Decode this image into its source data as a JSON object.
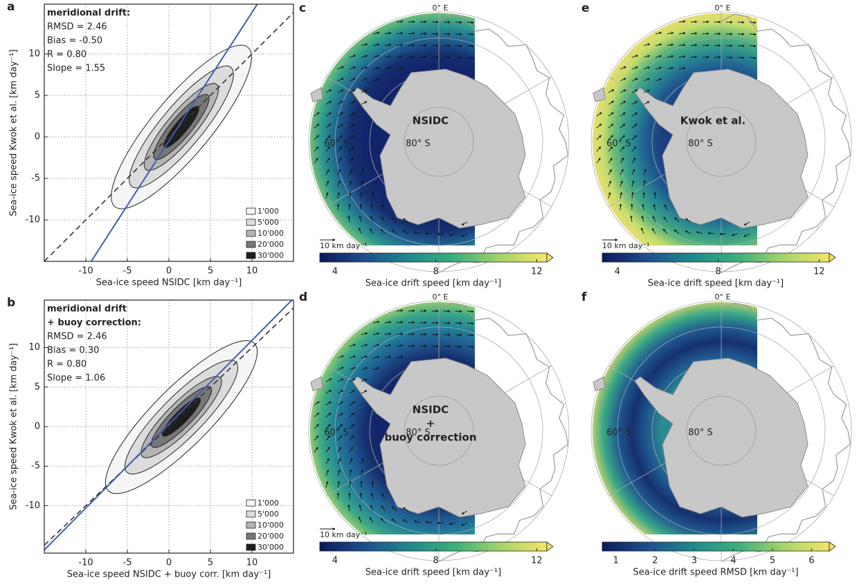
{
  "chart_data": [
    {
      "type": "contour",
      "panel_label": "a",
      "xlabel": "Sea-ice speed NSIDC [km day⁻¹]",
      "ylabel": "Sea-ice speed Kwok et al. [km day⁻¹]",
      "xlim": [
        -15,
        15
      ],
      "ylim": [
        -15,
        16
      ],
      "xticks": [
        -10,
        -5,
        0,
        5,
        10
      ],
      "yticks": [
        -10,
        -5,
        0,
        5,
        10
      ],
      "grid": true,
      "stats_title": [
        "meridional drift:"
      ],
      "stats": [
        {
          "value": 2.46,
          "label": "RMSD = 2.46"
        },
        {
          "value": -0.5,
          "label": "Bias = -0.50"
        },
        {
          "value": 0.8,
          "label": "R = 0.80"
        },
        {
          "value": 1.55,
          "label": "Slope = 1.55"
        }
      ],
      "fit_color": "#3f5fa8",
      "levels": [
        {
          "value": 1000,
          "label": "1'000"
        },
        {
          "value": 5000,
          "label": "5'000"
        },
        {
          "value": 10000,
          "label": "10'000"
        },
        {
          "value": 20000,
          "label": "20'000"
        },
        {
          "value": 30000,
          "label": "30'000"
        }
      ],
      "level_colors": [
        "#f5f5f5",
        "#dcdcdc",
        "#b4b4b4",
        "#777777",
        "#1e1e1e"
      ]
    },
    {
      "type": "contour",
      "panel_label": "b",
      "xlabel": "Sea-ice speed NSIDC + buoy corr. [km day⁻¹]",
      "ylabel": "Sea-ice speed Kwok et al. [km day⁻¹]",
      "xlim": [
        -15,
        15
      ],
      "ylim": [
        -16,
        16
      ],
      "xticks": [
        -10,
        -5,
        0,
        5,
        10
      ],
      "yticks": [
        -10,
        -5,
        0,
        5,
        10
      ],
      "grid": true,
      "stats_title": [
        "meridional drift",
        "+ buoy correction:"
      ],
      "stats": [
        {
          "value": 2.46,
          "label": "RMSD = 2.46"
        },
        {
          "value": 0.3,
          "label": "Bias = 0.30"
        },
        {
          "value": 0.8,
          "label": "R = 0.80"
        },
        {
          "value": 1.06,
          "label": "Slope = 1.06"
        }
      ],
      "fit_color": "#3f5fa8",
      "levels": [
        {
          "value": 1000,
          "label": "1'000"
        },
        {
          "value": 5000,
          "label": "5'000"
        },
        {
          "value": 10000,
          "label": "10'000"
        },
        {
          "value": 20000,
          "label": "20'000"
        },
        {
          "value": 30000,
          "label": "30'000"
        }
      ],
      "level_colors": [
        "#f5f5f5",
        "#dcdcdc",
        "#b4b4b4",
        "#777777",
        "#1e1e1e"
      ]
    },
    {
      "type": "map",
      "panel_label": "c",
      "title_lines": [
        "NSIDC"
      ],
      "graticule_labels": [
        "0° E",
        "60° S",
        "80° S"
      ],
      "arrows": true,
      "arrow_label": "10 km day⁻¹",
      "colorbar_label": "Sea-ice drift speed [km day⁻¹]",
      "clim": [
        3.4,
        12.4
      ],
      "cticks": [
        4,
        8,
        12
      ],
      "colormap": [
        "#0b1a5c",
        "#1f4e8c",
        "#1f8a8c",
        "#3cb07c",
        "#a8d46a",
        "#f4e46a"
      ],
      "field_colors": [
        "#12246a",
        "#12246a",
        "#16306f",
        "#1f6392",
        "#2f9a8c",
        "#8ccc70"
      ]
    },
    {
      "type": "map",
      "panel_label": "d",
      "title_lines": [
        "NSIDC",
        "+",
        "buoy correction"
      ],
      "graticule_labels": [
        "0° E",
        "60° S",
        "80° S"
      ],
      "arrows": true,
      "arrow_label": "10 km day⁻¹",
      "colorbar_label": "Sea-ice drift speed [km day⁻¹]",
      "clim": [
        3.4,
        12.4
      ],
      "cticks": [
        4,
        8,
        12
      ],
      "colormap": [
        "#0b1a5c",
        "#1f4e8c",
        "#1f8a8c",
        "#3cb07c",
        "#a8d46a",
        "#f4e46a"
      ],
      "field_colors": [
        "#12246a",
        "#16306f",
        "#1f5a90",
        "#23809a",
        "#3aa885",
        "#b4d86a"
      ]
    },
    {
      "type": "map",
      "panel_label": "e",
      "title_lines": [
        "Kwok et al."
      ],
      "graticule_labels": [
        "0° E",
        "60° S",
        "80° S"
      ],
      "arrows": true,
      "arrow_label": "10 km day⁻¹",
      "colorbar_label": "Sea-ice drift speed [km day⁻¹]",
      "clim": [
        3.4,
        12.4
      ],
      "cticks": [
        4,
        8,
        12
      ],
      "colormap": [
        "#0b1a5c",
        "#1f4e8c",
        "#1f8a8c",
        "#3cb07c",
        "#a8d46a",
        "#f4e46a"
      ],
      "field_colors": [
        "#1b3f82",
        "#1f5a90",
        "#2a8a92",
        "#4cb07e",
        "#c6dc6c",
        "#f0e070"
      ]
    },
    {
      "type": "map",
      "panel_label": "f",
      "title_lines": [],
      "graticule_labels": [
        "0° E",
        "60° S",
        "80° S"
      ],
      "arrows": false,
      "colorbar_label": "Sea-ice drift speed RMSD [km day⁻¹]",
      "clim": [
        0.65,
        6.45
      ],
      "cticks": [
        1,
        2,
        3,
        4,
        5,
        6
      ],
      "colormap": [
        "#0b1a5c",
        "#1f4e8c",
        "#1f8a8c",
        "#3cb07c",
        "#a8d46a",
        "#f4e46a"
      ],
      "field_colors": [
        "#2a8a92",
        "#1f5a90",
        "#16306f",
        "#1f5a90",
        "#3aa885",
        "#e6dc6a"
      ]
    }
  ]
}
